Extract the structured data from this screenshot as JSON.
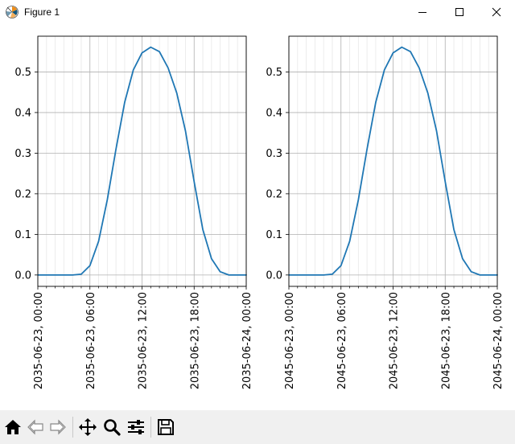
{
  "window": {
    "title": "Figure 1",
    "controls": [
      "minimize-icon",
      "maximize-icon",
      "close-icon"
    ]
  },
  "toolbar": {
    "buttons": [
      "home-icon",
      "back-icon",
      "forward-icon",
      "pan-icon",
      "zoom-icon",
      "configure-subplots-icon",
      "save-icon"
    ]
  },
  "colors": {
    "line": "#1f77b4",
    "major_grid": "#b0b0b0",
    "minor_grid": "#e8e8e8",
    "toolbar_bg": "#f0f0f0"
  },
  "chart_data": [
    {
      "type": "line",
      "x_unit": "hours",
      "x": [
        0,
        1,
        2,
        3,
        4,
        5,
        6,
        7,
        8,
        9,
        10,
        11,
        12,
        13,
        14,
        15,
        16,
        17,
        18,
        19,
        20,
        21,
        22,
        23,
        24
      ],
      "y": [
        0.0,
        0.0,
        0.0,
        0.0,
        0.0,
        0.002,
        0.023,
        0.083,
        0.185,
        0.31,
        0.425,
        0.505,
        0.547,
        0.561,
        0.55,
        0.51,
        0.448,
        0.355,
        0.23,
        0.112,
        0.04,
        0.008,
        0.0,
        0.0,
        0.0
      ],
      "xlim": [
        "2035-06-23, 00:00",
        "2035-06-24, 00:00"
      ],
      "ylim": [
        -0.028,
        0.588
      ],
      "xticks": [
        0,
        6,
        12,
        18,
        24
      ],
      "xtick_labels": [
        "2035-06-23, 00:00",
        "2035-06-23, 06:00",
        "2035-06-23, 12:00",
        "2035-06-23, 18:00",
        "2035-06-24, 00:00"
      ],
      "yticks": [
        0.0,
        0.1,
        0.2,
        0.3,
        0.4,
        0.5
      ],
      "ytick_labels": [
        "0.0",
        "0.1",
        "0.2",
        "0.3",
        "0.4",
        "0.5"
      ],
      "minor_xticks": "hourly",
      "grid": true,
      "minor_grid": true,
      "title": "",
      "xlabel": "",
      "ylabel": ""
    },
    {
      "type": "line",
      "x_unit": "hours",
      "x": [
        0,
        1,
        2,
        3,
        4,
        5,
        6,
        7,
        8,
        9,
        10,
        11,
        12,
        13,
        14,
        15,
        16,
        17,
        18,
        19,
        20,
        21,
        22,
        23,
        24
      ],
      "y": [
        0.0,
        0.0,
        0.0,
        0.0,
        0.0,
        0.002,
        0.023,
        0.083,
        0.185,
        0.31,
        0.425,
        0.505,
        0.547,
        0.561,
        0.55,
        0.51,
        0.448,
        0.355,
        0.23,
        0.112,
        0.04,
        0.008,
        0.0,
        0.0,
        0.0
      ],
      "xlim": [
        "2045-06-23, 00:00",
        "2045-06-24, 00:00"
      ],
      "ylim": [
        -0.028,
        0.588
      ],
      "xticks": [
        0,
        6,
        12,
        18,
        24
      ],
      "xtick_labels": [
        "2045-06-23, 00:00",
        "2045-06-23, 06:00",
        "2045-06-23, 12:00",
        "2045-06-23, 18:00",
        "2045-06-24, 00:00"
      ],
      "yticks": [
        0.0,
        0.1,
        0.2,
        0.3,
        0.4,
        0.5
      ],
      "ytick_labels": [
        "0.0",
        "0.1",
        "0.2",
        "0.3",
        "0.4",
        "0.5"
      ],
      "minor_xticks": "hourly",
      "grid": true,
      "minor_grid": true,
      "title": "",
      "xlabel": "",
      "ylabel": ""
    }
  ]
}
